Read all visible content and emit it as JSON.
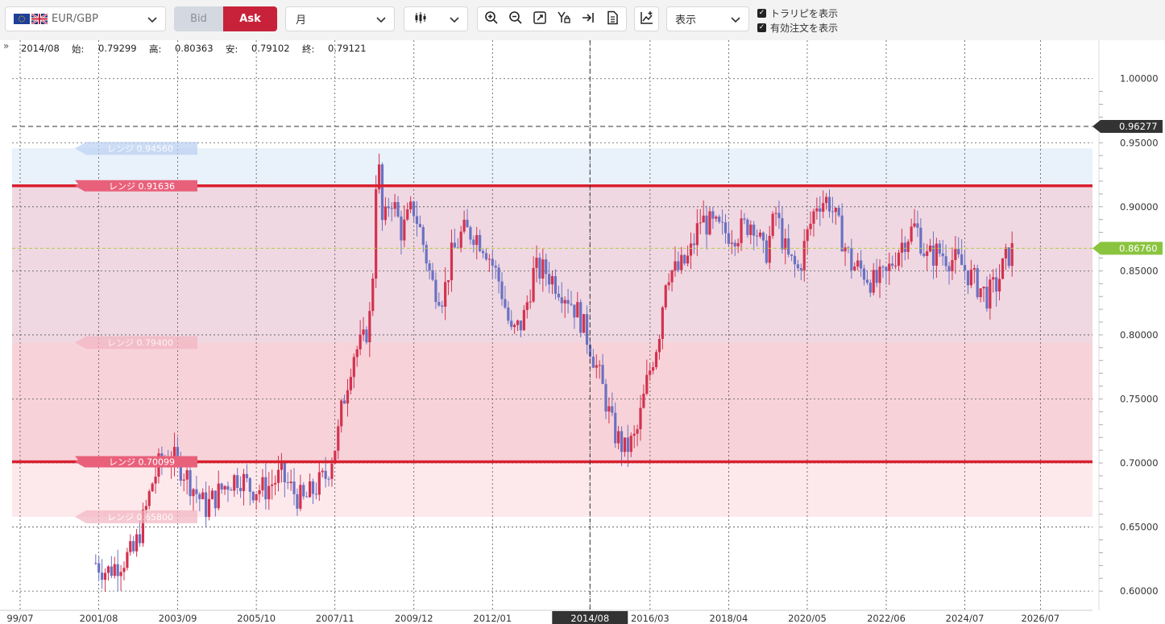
{
  "toolbar": {
    "symbol": "EUR/GBP",
    "bid_label": "Bid",
    "ask_label": "Ask",
    "period": "月",
    "display": "表示",
    "checkbox_trail": "トラリピを表示",
    "checkbox_orders": "有効注文を表示",
    "checkbox_mark": "✓"
  },
  "ohlc": {
    "date": "2014/08",
    "open_label": "始:",
    "open": "0.79299",
    "high_label": "高:",
    "high": "0.80363",
    "low_label": "安:",
    "low": "0.79102",
    "close_label": "終:",
    "close": "0.79121"
  },
  "chart_data": {
    "type": "candlestick",
    "period": "monthly",
    "ylim": [
      0.585,
      1.03
    ],
    "yticks": [
      "0.60000",
      "0.65000",
      "0.70000",
      "0.75000",
      "0.80000",
      "0.85000",
      "0.90000",
      "0.95000",
      "1.00000"
    ],
    "xticks": [
      "99/07",
      "2001/08",
      "2003/09",
      "2005/10",
      "2007/11",
      "2009/12",
      "2012/01",
      "2014/08",
      "2016/03",
      "2018/04",
      "2020/05",
      "2022/06",
      "2024/07",
      "2026/07"
    ],
    "crosshair_label": "2014/08",
    "current_price": "0.86760",
    "marker_price": "0.96277",
    "ranges": [
      {
        "label": "レンジ 0.91636",
        "value": 0.91636,
        "main": true
      },
      {
        "label": "レンジ 0.70099",
        "value": 0.70099,
        "main": true
      },
      {
        "label": "レンジ 0.94560",
        "value": 0.9456,
        "main": false
      },
      {
        "label": "レンジ 0.79400",
        "value": 0.794,
        "main": false
      },
      {
        "label": "レンジ 0.65800",
        "value": 0.658,
        "main": false
      }
    ],
    "path": [
      [
        2001.5,
        0.622
      ],
      [
        2001.8,
        0.615
      ],
      [
        2002.1,
        0.622
      ],
      [
        2002.5,
        0.63
      ],
      [
        2002.8,
        0.66
      ],
      [
        2003.0,
        0.685
      ],
      [
        2003.2,
        0.7
      ],
      [
        2003.5,
        0.705
      ],
      [
        2003.8,
        0.695
      ],
      [
        2004.1,
        0.68
      ],
      [
        2004.4,
        0.665
      ],
      [
        2004.7,
        0.675
      ],
      [
        2005.0,
        0.685
      ],
      [
        2005.3,
        0.69
      ],
      [
        2005.6,
        0.68
      ],
      [
        2006.0,
        0.68
      ],
      [
        2006.4,
        0.69
      ],
      [
        2006.8,
        0.675
      ],
      [
        2007.0,
        0.67
      ],
      [
        2007.3,
        0.68
      ],
      [
        2007.6,
        0.69
      ],
      [
        2007.9,
        0.72
      ],
      [
        2008.0,
        0.74
      ],
      [
        2008.3,
        0.785
      ],
      [
        2008.6,
        0.795
      ],
      [
        2008.8,
        0.82
      ],
      [
        2008.95,
        0.95
      ],
      [
        2009.1,
        0.88
      ],
      [
        2009.3,
        0.91
      ],
      [
        2009.6,
        0.88
      ],
      [
        2009.9,
        0.9
      ],
      [
        2010.1,
        0.88
      ],
      [
        2010.4,
        0.84
      ],
      [
        2010.7,
        0.83
      ],
      [
        2010.9,
        0.86
      ],
      [
        2011.2,
        0.88
      ],
      [
        2011.5,
        0.88
      ],
      [
        2011.8,
        0.87
      ],
      [
        2012.2,
        0.84
      ],
      [
        2012.5,
        0.8
      ],
      [
        2012.8,
        0.81
      ],
      [
        2013.1,
        0.85
      ],
      [
        2013.4,
        0.85
      ],
      [
        2013.7,
        0.84
      ],
      [
        2014.0,
        0.83
      ],
      [
        2014.3,
        0.815
      ],
      [
        2014.6,
        0.79
      ],
      [
        2014.9,
        0.76
      ],
      [
        2015.2,
        0.725
      ],
      [
        2015.5,
        0.71
      ],
      [
        2015.8,
        0.72
      ],
      [
        2016.1,
        0.765
      ],
      [
        2016.4,
        0.8
      ],
      [
        2016.6,
        0.85
      ],
      [
        2016.9,
        0.85
      ],
      [
        2017.2,
        0.86
      ],
      [
        2017.5,
        0.89
      ],
      [
        2017.8,
        0.885
      ],
      [
        2018.1,
        0.88
      ],
      [
        2018.5,
        0.88
      ],
      [
        2018.9,
        0.89
      ],
      [
        2019.2,
        0.86
      ],
      [
        2019.5,
        0.895
      ],
      [
        2019.8,
        0.86
      ],
      [
        2020.1,
        0.85
      ],
      [
        2020.3,
        0.875
      ],
      [
        2020.6,
        0.905
      ],
      [
        2020.9,
        0.905
      ],
      [
        2021.2,
        0.88
      ],
      [
        2021.5,
        0.855
      ],
      [
        2021.8,
        0.85
      ],
      [
        2022.1,
        0.84
      ],
      [
        2022.4,
        0.845
      ],
      [
        2022.7,
        0.865
      ],
      [
        2022.9,
        0.875
      ],
      [
        2023.2,
        0.885
      ],
      [
        2023.5,
        0.86
      ],
      [
        2023.8,
        0.865
      ],
      [
        2024.1,
        0.86
      ],
      [
        2024.4,
        0.855
      ],
      [
        2024.8,
        0.84
      ],
      [
        2025.1,
        0.83
      ],
      [
        2025.35,
        0.84
      ],
      [
        2025.6,
        0.86
      ],
      [
        2025.8,
        0.8676
      ]
    ]
  }
}
